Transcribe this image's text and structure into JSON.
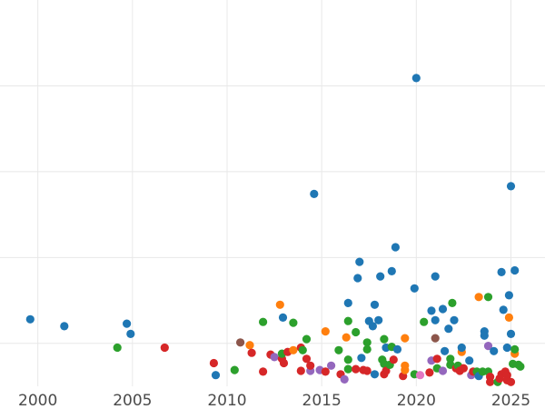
{
  "chart_data": {
    "type": "scatter",
    "title": "",
    "xlabel": "",
    "ylabel": "",
    "xlim": [
      1998.0,
      2026.8
    ],
    "ylim": [
      0,
      450
    ],
    "x_ticks": [
      2000,
      2005,
      2010,
      2015,
      2020,
      2025
    ],
    "x_tick_labels": [
      "2000",
      "2005",
      "2010",
      "2015",
      "2020",
      "2025"
    ],
    "y_gridlines": [
      50,
      150,
      250,
      350
    ],
    "grid": true,
    "legend": "none",
    "colors": {
      "blue": "#1f77b4",
      "orange": "#ff7f0e",
      "green": "#2ca02c",
      "red": "#d62728",
      "purple": "#9467bd",
      "brown": "#8c564b",
      "pink": "#e377c2"
    },
    "points": [
      {
        "x": 1999.6,
        "y": 78,
        "c": "blue"
      },
      {
        "x": 2001.4,
        "y": 70,
        "c": "blue"
      },
      {
        "x": 2004.2,
        "y": 45,
        "c": "green"
      },
      {
        "x": 2004.7,
        "y": 73,
        "c": "blue"
      },
      {
        "x": 2004.9,
        "y": 61,
        "c": "blue"
      },
      {
        "x": 2006.7,
        "y": 45,
        "c": "red"
      },
      {
        "x": 2009.3,
        "y": 27,
        "c": "red"
      },
      {
        "x": 2009.4,
        "y": 13,
        "c": "blue"
      },
      {
        "x": 2010.4,
        "y": 19,
        "c": "green"
      },
      {
        "x": 2010.7,
        "y": 51,
        "c": "brown"
      },
      {
        "x": 2011.2,
        "y": 48,
        "c": "orange"
      },
      {
        "x": 2011.3,
        "y": 39,
        "c": "red"
      },
      {
        "x": 2011.9,
        "y": 75,
        "c": "green"
      },
      {
        "x": 2011.9,
        "y": 17,
        "c": "red"
      },
      {
        "x": 2012.3,
        "y": 37,
        "c": "red"
      },
      {
        "x": 2012.5,
        "y": 34,
        "c": "purple"
      },
      {
        "x": 2012.8,
        "y": 95,
        "c": "orange"
      },
      {
        "x": 2012.9,
        "y": 32,
        "c": "red"
      },
      {
        "x": 2012.9,
        "y": 38,
        "c": "green"
      },
      {
        "x": 2012.95,
        "y": 80,
        "c": "blue"
      },
      {
        "x": 2013.0,
        "y": 27,
        "c": "red"
      },
      {
        "x": 2013.2,
        "y": 40,
        "c": "red"
      },
      {
        "x": 2013.5,
        "y": 42,
        "c": "orange"
      },
      {
        "x": 2013.5,
        "y": 74,
        "c": "green"
      },
      {
        "x": 2013.9,
        "y": 45,
        "c": "red"
      },
      {
        "x": 2014.0,
        "y": 42,
        "c": "green"
      },
      {
        "x": 2013.9,
        "y": 18,
        "c": "red"
      },
      {
        "x": 2014.2,
        "y": 55,
        "c": "green"
      },
      {
        "x": 2014.2,
        "y": 32,
        "c": "red"
      },
      {
        "x": 2014.4,
        "y": 18,
        "c": "purple"
      },
      {
        "x": 2014.4,
        "y": 24,
        "c": "red"
      },
      {
        "x": 2014.6,
        "y": 224,
        "c": "blue"
      },
      {
        "x": 2014.9,
        "y": 19,
        "c": "purple"
      },
      {
        "x": 2015.2,
        "y": 17,
        "c": "red"
      },
      {
        "x": 2015.2,
        "y": 64,
        "c": "orange"
      },
      {
        "x": 2015.5,
        "y": 24,
        "c": "purple"
      },
      {
        "x": 2015.9,
        "y": 42,
        "c": "green"
      },
      {
        "x": 2016.0,
        "y": 14,
        "c": "red"
      },
      {
        "x": 2016.2,
        "y": 8,
        "c": "purple"
      },
      {
        "x": 2016.3,
        "y": 57,
        "c": "orange"
      },
      {
        "x": 2016.4,
        "y": 31,
        "c": "green"
      },
      {
        "x": 2016.4,
        "y": 20,
        "c": "green"
      },
      {
        "x": 2016.4,
        "y": 76,
        "c": "green"
      },
      {
        "x": 2016.4,
        "y": 97,
        "c": "blue"
      },
      {
        "x": 2016.8,
        "y": 20,
        "c": "red"
      },
      {
        "x": 2016.8,
        "y": 63,
        "c": "green"
      },
      {
        "x": 2016.9,
        "y": 126,
        "c": "blue"
      },
      {
        "x": 2017.0,
        "y": 145,
        "c": "blue"
      },
      {
        "x": 2017.1,
        "y": 33,
        "c": "blue"
      },
      {
        "x": 2017.2,
        "y": 19,
        "c": "red"
      },
      {
        "x": 2017.4,
        "y": 18,
        "c": "red"
      },
      {
        "x": 2017.4,
        "y": 43,
        "c": "green"
      },
      {
        "x": 2017.4,
        "y": 51,
        "c": "green"
      },
      {
        "x": 2017.5,
        "y": 76,
        "c": "blue"
      },
      {
        "x": 2017.7,
        "y": 70,
        "c": "blue"
      },
      {
        "x": 2017.8,
        "y": 14,
        "c": "blue"
      },
      {
        "x": 2017.8,
        "y": 95,
        "c": "blue"
      },
      {
        "x": 2018.0,
        "y": 77,
        "c": "blue"
      },
      {
        "x": 2018.1,
        "y": 128,
        "c": "blue"
      },
      {
        "x": 2018.2,
        "y": 31,
        "c": "green"
      },
      {
        "x": 2018.3,
        "y": 26,
        "c": "green"
      },
      {
        "x": 2018.3,
        "y": 55,
        "c": "green"
      },
      {
        "x": 2018.3,
        "y": 14,
        "c": "red"
      },
      {
        "x": 2018.4,
        "y": 45,
        "c": "blue"
      },
      {
        "x": 2018.4,
        "y": 18,
        "c": "red"
      },
      {
        "x": 2018.6,
        "y": 25,
        "c": "green"
      },
      {
        "x": 2018.7,
        "y": 46,
        "c": "green"
      },
      {
        "x": 2018.7,
        "y": 134,
        "c": "blue"
      },
      {
        "x": 2018.8,
        "y": 31,
        "c": "red"
      },
      {
        "x": 2018.9,
        "y": 162,
        "c": "blue"
      },
      {
        "x": 2019.0,
        "y": 43,
        "c": "blue"
      },
      {
        "x": 2019.3,
        "y": 12,
        "c": "red"
      },
      {
        "x": 2019.4,
        "y": 56,
        "c": "orange"
      },
      {
        "x": 2019.4,
        "y": 24,
        "c": "orange"
      },
      {
        "x": 2019.4,
        "y": 19,
        "c": "orange"
      },
      {
        "x": 2019.9,
        "y": 14,
        "c": "green"
      },
      {
        "x": 2019.9,
        "y": 114,
        "c": "blue"
      },
      {
        "x": 2020.0,
        "y": 359,
        "c": "blue"
      },
      {
        "x": 2020.2,
        "y": 13,
        "c": "pink"
      },
      {
        "x": 2020.4,
        "y": 75,
        "c": "green"
      },
      {
        "x": 2020.7,
        "y": 16,
        "c": "red"
      },
      {
        "x": 2020.8,
        "y": 30,
        "c": "purple"
      },
      {
        "x": 2020.8,
        "y": 88,
        "c": "blue"
      },
      {
        "x": 2021.0,
        "y": 77,
        "c": "blue"
      },
      {
        "x": 2021.0,
        "y": 56,
        "c": "brown"
      },
      {
        "x": 2021.0,
        "y": 128,
        "c": "blue"
      },
      {
        "x": 2021.1,
        "y": 32,
        "c": "red"
      },
      {
        "x": 2021.1,
        "y": 21,
        "c": "green"
      },
      {
        "x": 2021.4,
        "y": 18,
        "c": "purple"
      },
      {
        "x": 2021.4,
        "y": 90,
        "c": "blue"
      },
      {
        "x": 2021.5,
        "y": 41,
        "c": "blue"
      },
      {
        "x": 2021.7,
        "y": 67,
        "c": "blue"
      },
      {
        "x": 2021.8,
        "y": 25,
        "c": "green"
      },
      {
        "x": 2021.8,
        "y": 32,
        "c": "green"
      },
      {
        "x": 2021.9,
        "y": 97,
        "c": "green"
      },
      {
        "x": 2022.0,
        "y": 77,
        "c": "blue"
      },
      {
        "x": 2022.1,
        "y": 21,
        "c": "red"
      },
      {
        "x": 2022.2,
        "y": 24,
        "c": "green"
      },
      {
        "x": 2022.3,
        "y": 18,
        "c": "red"
      },
      {
        "x": 2022.4,
        "y": 40,
        "c": "orange"
      },
      {
        "x": 2022.4,
        "y": 45,
        "c": "blue"
      },
      {
        "x": 2022.5,
        "y": 21,
        "c": "red"
      },
      {
        "x": 2022.8,
        "y": 30,
        "c": "blue"
      },
      {
        "x": 2022.9,
        "y": 13,
        "c": "purple"
      },
      {
        "x": 2023.0,
        "y": 17,
        "c": "red"
      },
      {
        "x": 2023.2,
        "y": 17,
        "c": "green"
      },
      {
        "x": 2023.3,
        "y": 12,
        "c": "blue"
      },
      {
        "x": 2023.3,
        "y": 104,
        "c": "orange"
      },
      {
        "x": 2023.5,
        "y": 17,
        "c": "green"
      },
      {
        "x": 2023.6,
        "y": 64,
        "c": "blue"
      },
      {
        "x": 2023.6,
        "y": 59,
        "c": "blue"
      },
      {
        "x": 2023.8,
        "y": 17,
        "c": "green"
      },
      {
        "x": 2023.8,
        "y": 47,
        "c": "purple"
      },
      {
        "x": 2023.8,
        "y": 104,
        "c": "green"
      },
      {
        "x": 2023.9,
        "y": 11,
        "c": "red"
      },
      {
        "x": 2023.9,
        "y": 5,
        "c": "red"
      },
      {
        "x": 2024.1,
        "y": 41,
        "c": "blue"
      },
      {
        "x": 2024.3,
        "y": 5,
        "c": "green"
      },
      {
        "x": 2024.4,
        "y": 9,
        "c": "red"
      },
      {
        "x": 2024.5,
        "y": 14,
        "c": "red"
      },
      {
        "x": 2024.5,
        "y": 133,
        "c": "blue"
      },
      {
        "x": 2024.6,
        "y": 89,
        "c": "blue"
      },
      {
        "x": 2024.7,
        "y": 17,
        "c": "red"
      },
      {
        "x": 2024.8,
        "y": 13,
        "c": "red"
      },
      {
        "x": 2024.8,
        "y": 45,
        "c": "blue"
      },
      {
        "x": 2024.8,
        "y": 7,
        "c": "red"
      },
      {
        "x": 2024.9,
        "y": 80,
        "c": "orange"
      },
      {
        "x": 2024.9,
        "y": 106,
        "c": "blue"
      },
      {
        "x": 2025.0,
        "y": 61,
        "c": "blue"
      },
      {
        "x": 2025.0,
        "y": 233,
        "c": "blue"
      },
      {
        "x": 2025.0,
        "y": 5,
        "c": "red"
      },
      {
        "x": 2025.1,
        "y": 26,
        "c": "green"
      },
      {
        "x": 2025.2,
        "y": 38,
        "c": "orange"
      },
      {
        "x": 2025.2,
        "y": 43,
        "c": "green"
      },
      {
        "x": 2025.2,
        "y": 135,
        "c": "blue"
      },
      {
        "x": 2025.4,
        "y": 25,
        "c": "green"
      },
      {
        "x": 2025.5,
        "y": 23,
        "c": "green"
      }
    ]
  }
}
